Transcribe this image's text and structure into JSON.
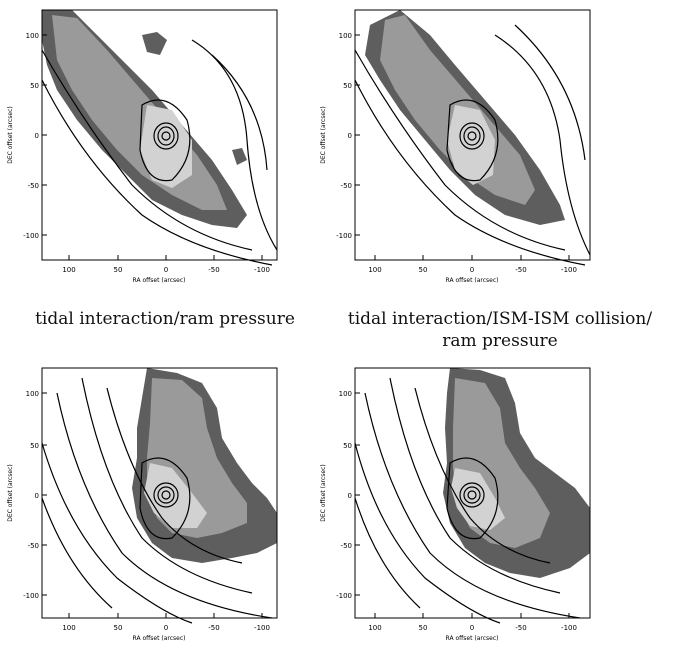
{
  "figure": {
    "axis_labels": {
      "x": "RA offset (arcsec)",
      "y": "DEC offset (arcsec)"
    },
    "x_ticks": [
      "100",
      "50",
      "0",
      "-50",
      "-100"
    ],
    "y_ticks": [
      "100",
      "50",
      "0",
      "-50",
      "-100"
    ],
    "x_range": [
      125,
      -120
    ],
    "y_range": [
      -125,
      125
    ],
    "colors": {
      "light": "#d2d2d2",
      "mid": "#9a9a9a",
      "dark": "#5e5e5e",
      "contour": "#000000"
    }
  },
  "captions": {
    "top_left": "tidal interaction/ram pressure",
    "top_right_line1": "tidal interaction/ISM-ISM collision/",
    "top_right_line2": "ram pressure"
  }
}
